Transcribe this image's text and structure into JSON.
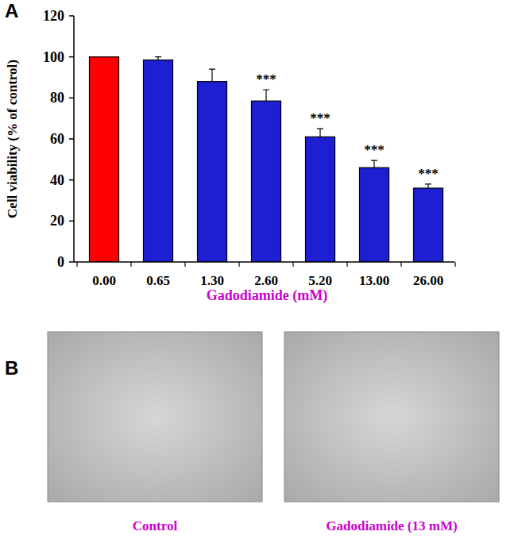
{
  "chart_data": {
    "type": "bar",
    "x_label": "Gadodiamide (mM)",
    "y_label": "Cell viability (% of control)",
    "categories": [
      "0.00",
      "0.65",
      "1.30",
      "2.60",
      "5.20",
      "13.00",
      "26.00"
    ],
    "values": [
      100,
      98.5,
      88,
      78.5,
      61,
      46,
      36
    ],
    "errors": [
      0,
      1.5,
      6,
      5.5,
      4,
      3.5,
      2
    ],
    "significance": [
      null,
      null,
      null,
      "***",
      "***",
      "***",
      "***"
    ],
    "colors": [
      "#ff0000",
      "#1e1ed2",
      "#1e1ed2",
      "#1e1ed2",
      "#1e1ed2",
      "#1e1ed2",
      "#1e1ed2"
    ],
    "ylim": [
      0,
      120
    ],
    "yticks": [
      0,
      20,
      40,
      60,
      80,
      100,
      120
    ],
    "grid": false
  },
  "panel_labels": [
    "A",
    "B"
  ],
  "images": [
    {
      "caption": "Control"
    },
    {
      "caption": "Gadodiamide (13 mM)"
    }
  ]
}
